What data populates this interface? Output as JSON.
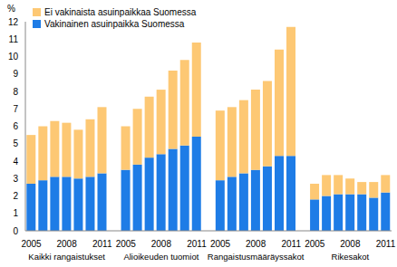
{
  "chart_data": {
    "type": "bar",
    "stacked": true,
    "y_label": "%",
    "categories": [
      "2005",
      null,
      null,
      "2008",
      null,
      null,
      "2011",
      null,
      "2005",
      null,
      null,
      "2008",
      null,
      null,
      "2011",
      null,
      "2005",
      null,
      null,
      "2008",
      null,
      null,
      "2011",
      null,
      "2005",
      null,
      null,
      "2008",
      null,
      null,
      "2011"
    ],
    "groups": [
      "Kaikki rangaistukset",
      "Alioikeuden tuomiot",
      "Rangaistusmääräyssakot",
      "Rikesakot"
    ],
    "series": [
      {
        "name": "Vakinainen asuinpaikka Suomessa",
        "color": "#1e7ce6",
        "values": [
          2.7,
          2.9,
          3.1,
          3.1,
          3.0,
          3.1,
          3.3,
          null,
          3.5,
          3.8,
          4.2,
          4.4,
          4.7,
          4.9,
          5.4,
          null,
          2.9,
          3.1,
          3.3,
          3.5,
          3.7,
          4.3,
          4.3,
          null,
          1.8,
          2.0,
          2.1,
          2.1,
          2.1,
          1.9,
          2.2
        ]
      },
      {
        "name": "Ei vakinaista asuinpaikkaa Suomessa",
        "color": "#fdc874",
        "values": [
          2.8,
          3.1,
          3.2,
          3.1,
          2.8,
          3.3,
          3.8,
          null,
          2.5,
          3.2,
          3.5,
          3.7,
          4.5,
          4.9,
          5.4,
          null,
          4.0,
          4.0,
          4.2,
          4.6,
          4.9,
          6.1,
          7.4,
          null,
          0.9,
          1.2,
          1.1,
          0.9,
          0.7,
          0.9,
          1.0
        ]
      }
    ],
    "ylim": [
      0,
      12
    ],
    "yticks": [
      0,
      1,
      2,
      3,
      4,
      5,
      6,
      7,
      8,
      9,
      10,
      11,
      12
    ],
    "grid": false,
    "legend": "top-left"
  }
}
